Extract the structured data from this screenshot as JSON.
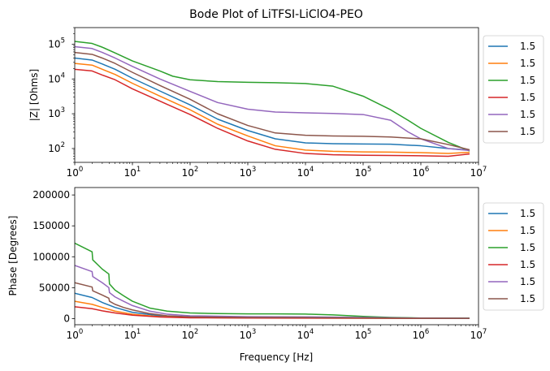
{
  "chart_data": [
    {
      "type": "line",
      "title": "Bode Plot of LiTFSI-LiClO4-PEO",
      "xlabel": "",
      "ylabel": "|Z| [Ohms]",
      "xscale": "log",
      "yscale": "log",
      "xlim": [
        1,
        10000000
      ],
      "ylim": [
        40,
        300000
      ],
      "xticks": [
        {
          "value": 1,
          "base": "10",
          "exp": "0"
        },
        {
          "value": 10,
          "base": "10",
          "exp": "1"
        },
        {
          "value": 100,
          "base": "10",
          "exp": "2"
        },
        {
          "value": 1000,
          "base": "10",
          "exp": "3"
        },
        {
          "value": 10000,
          "base": "10",
          "exp": "4"
        },
        {
          "value": 100000,
          "base": "10",
          "exp": "5"
        },
        {
          "value": 1000000,
          "base": "10",
          "exp": "6"
        },
        {
          "value": 10000000,
          "base": "10",
          "exp": "7"
        }
      ],
      "yticks": [
        {
          "value": 100,
          "base": "10",
          "exp": "2"
        },
        {
          "value": 1000,
          "base": "10",
          "exp": "3"
        },
        {
          "value": 10000,
          "base": "10",
          "exp": "4"
        },
        {
          "value": 100000,
          "base": "10",
          "exp": "5"
        }
      ],
      "grid": false,
      "legend_position": "outside-right",
      "series": [
        {
          "name": "1.5",
          "color": "#1f77b4",
          "points": [
            [
              1,
              40000
            ],
            [
              2,
              35000
            ],
            [
              3,
              27000
            ],
            [
              5,
              19000
            ],
            [
              10,
              10500
            ],
            [
              30,
              4500
            ],
            [
              100,
              1800
            ],
            [
              300,
              700
            ],
            [
              1000,
              330
            ],
            [
              3000,
              190
            ],
            [
              10000,
              145
            ],
            [
              30000,
              138
            ],
            [
              100000,
              135
            ],
            [
              300000,
              133
            ],
            [
              1000000,
              120
            ],
            [
              3000000,
              100
            ],
            [
              7000000,
              90
            ]
          ]
        },
        {
          "name": "1.5",
          "color": "#ff7f0e",
          "points": [
            [
              1,
              28000
            ],
            [
              2,
              25000
            ],
            [
              3,
              19000
            ],
            [
              5,
              13500
            ],
            [
              10,
              7500
            ],
            [
              30,
              3200
            ],
            [
              100,
              1300
            ],
            [
              300,
              500
            ],
            [
              1000,
              230
            ],
            [
              3000,
              120
            ],
            [
              10000,
              90
            ],
            [
              30000,
              83
            ],
            [
              100000,
              80
            ],
            [
              300000,
              79
            ],
            [
              1000000,
              76
            ],
            [
              3000000,
              72
            ],
            [
              7000000,
              78
            ]
          ]
        },
        {
          "name": "1.5",
          "color": "#2ca02c",
          "points": [
            [
              1,
              120000
            ],
            [
              2,
              105000
            ],
            [
              3,
              82000
            ],
            [
              5,
              56000
            ],
            [
              10,
              33000
            ],
            [
              30,
              17000
            ],
            [
              50,
              12000
            ],
            [
              100,
              9500
            ],
            [
              300,
              8400
            ],
            [
              1000,
              8000
            ],
            [
              3000,
              7800
            ],
            [
              10000,
              7400
            ],
            [
              30000,
              6200
            ],
            [
              100000,
              3200
            ],
            [
              300000,
              1300
            ],
            [
              600000,
              650
            ],
            [
              1000000,
              380
            ],
            [
              3000000,
              150
            ],
            [
              7000000,
              85
            ]
          ]
        },
        {
          "name": "1.5",
          "color": "#d62728",
          "points": [
            [
              1,
              19000
            ],
            [
              2,
              17000
            ],
            [
              3,
              13000
            ],
            [
              5,
              9500
            ],
            [
              10,
              5200
            ],
            [
              30,
              2300
            ],
            [
              100,
              950
            ],
            [
              300,
              380
            ],
            [
              1000,
              165
            ],
            [
              3000,
              95
            ],
            [
              10000,
              72
            ],
            [
              30000,
              66
            ],
            [
              100000,
              64
            ],
            [
              300000,
              63
            ],
            [
              1000000,
              62
            ],
            [
              3000000,
              60
            ],
            [
              7000000,
              70
            ]
          ]
        },
        {
          "name": "1.5",
          "color": "#9467bd",
          "points": [
            [
              1,
              85000
            ],
            [
              2,
              75000
            ],
            [
              3,
              58000
            ],
            [
              5,
              40000
            ],
            [
              10,
              23000
            ],
            [
              30,
              10000
            ],
            [
              100,
              4400
            ],
            [
              300,
              2100
            ],
            [
              1000,
              1350
            ],
            [
              3000,
              1120
            ],
            [
              10000,
              1060
            ],
            [
              30000,
              1020
            ],
            [
              100000,
              950
            ],
            [
              300000,
              650
            ],
            [
              600000,
              300
            ],
            [
              1000000,
              190
            ],
            [
              3000000,
              100
            ],
            [
              7000000,
              88
            ]
          ]
        },
        {
          "name": "1.5",
          "color": "#8c564b",
          "points": [
            [
              1,
              58000
            ],
            [
              2,
              51000
            ],
            [
              3,
              40000
            ],
            [
              5,
              28000
            ],
            [
              10,
              15500
            ],
            [
              30,
              6500
            ],
            [
              100,
              2600
            ],
            [
              300,
              1000
            ],
            [
              1000,
              460
            ],
            [
              3000,
              280
            ],
            [
              10000,
              240
            ],
            [
              30000,
              230
            ],
            [
              100000,
              225
            ],
            [
              300000,
              215
            ],
            [
              1000000,
              190
            ],
            [
              3000000,
              130
            ],
            [
              7000000,
              92
            ]
          ]
        }
      ]
    },
    {
      "type": "line",
      "title": "",
      "xlabel": "Frequency [Hz]",
      "ylabel": "Phase [Degrees]",
      "xscale": "log",
      "yscale": "linear",
      "xlim": [
        1,
        10000000
      ],
      "ylim": [
        -10000,
        212000
      ],
      "xticks": [
        {
          "value": 1,
          "base": "10",
          "exp": "0"
        },
        {
          "value": 10,
          "base": "10",
          "exp": "1"
        },
        {
          "value": 100,
          "base": "10",
          "exp": "2"
        },
        {
          "value": 1000,
          "base": "10",
          "exp": "3"
        },
        {
          "value": 10000,
          "base": "10",
          "exp": "4"
        },
        {
          "value": 100000,
          "base": "10",
          "exp": "5"
        },
        {
          "value": 1000000,
          "base": "10",
          "exp": "6"
        },
        {
          "value": 10000000,
          "base": "10",
          "exp": "7"
        }
      ],
      "yticks": [
        {
          "value": 0,
          "label": "0"
        },
        {
          "value": 50000,
          "label": "50000"
        },
        {
          "value": 100000,
          "label": "100000"
        },
        {
          "value": 150000,
          "label": "150000"
        },
        {
          "value": 200000,
          "label": "200000"
        }
      ],
      "grid": false,
      "legend_position": "outside-right",
      "series": [
        {
          "name": "1.5",
          "color": "#1f77b4",
          "points": [
            [
              1,
              41000
            ],
            [
              2,
              34000
            ],
            [
              3,
              26000
            ],
            [
              5,
              18000
            ],
            [
              10,
              10000
            ],
            [
              30,
              4500
            ],
            [
              100,
              2300
            ],
            [
              1000,
              1500
            ],
            [
              10000,
              1300
            ],
            [
              100000,
              800
            ],
            [
              1000000,
              400
            ],
            [
              7000000,
              300
            ]
          ]
        },
        {
          "name": "1.5",
          "color": "#ff7f0e",
          "points": [
            [
              1,
              28000
            ],
            [
              2,
              23000
            ],
            [
              3,
              18000
            ],
            [
              5,
              12000
            ],
            [
              10,
              7000
            ],
            [
              30,
              3000
            ],
            [
              100,
              1600
            ],
            [
              1000,
              1000
            ],
            [
              10000,
              900
            ],
            [
              100000,
              600
            ],
            [
              1000000,
              300
            ],
            [
              7000000,
              200
            ]
          ]
        },
        {
          "name": "1.5",
          "color": "#2ca02c",
          "points": [
            [
              1,
              122000
            ],
            [
              2,
              108000
            ],
            [
              2.05,
              95000
            ],
            [
              3,
              80000
            ],
            [
              3.9,
              72000
            ],
            [
              4,
              56000
            ],
            [
              5,
              46000
            ],
            [
              7,
              37000
            ],
            [
              10,
              28000
            ],
            [
              20,
              17000
            ],
            [
              40,
              12000
            ],
            [
              100,
              9000
            ],
            [
              300,
              8000
            ],
            [
              1000,
              7600
            ],
            [
              3000,
              7500
            ],
            [
              10000,
              7200
            ],
            [
              30000,
              6000
            ],
            [
              100000,
              3500
            ],
            [
              300000,
              1800
            ],
            [
              1000000,
              900
            ],
            [
              7000000,
              600
            ]
          ]
        },
        {
          "name": "1.5",
          "color": "#d62728",
          "points": [
            [
              1,
              19000
            ],
            [
              2,
              16000
            ],
            [
              3,
              12500
            ],
            [
              5,
              9000
            ],
            [
              10,
              5500
            ],
            [
              30,
              2500
            ],
            [
              100,
              1200
            ],
            [
              1000,
              800
            ],
            [
              10000,
              700
            ],
            [
              100000,
              500
            ],
            [
              1000000,
              300
            ],
            [
              7000000,
              200
            ]
          ]
        },
        {
          "name": "1.5",
          "color": "#9467bd",
          "points": [
            [
              1,
              86000
            ],
            [
              2,
              76000
            ],
            [
              2.05,
              68000
            ],
            [
              3,
              58000
            ],
            [
              3.9,
              50000
            ],
            [
              4,
              42000
            ],
            [
              5,
              35000
            ],
            [
              7,
              28000
            ],
            [
              10,
              21000
            ],
            [
              20,
              12000
            ],
            [
              40,
              7000
            ],
            [
              100,
              4500
            ],
            [
              1000,
              3000
            ],
            [
              10000,
              2700
            ],
            [
              100000,
              1800
            ],
            [
              1000000,
              700
            ],
            [
              7000000,
              500
            ]
          ]
        },
        {
          "name": "1.5",
          "color": "#8c564b",
          "points": [
            [
              1,
              58000
            ],
            [
              2,
              51000
            ],
            [
              2.05,
              45000
            ],
            [
              3,
              38000
            ],
            [
              3.9,
              33000
            ],
            [
              4,
              28000
            ],
            [
              5,
              23000
            ],
            [
              7,
              18000
            ],
            [
              10,
              14000
            ],
            [
              20,
              8000
            ],
            [
              40,
              4500
            ],
            [
              100,
              2800
            ],
            [
              1000,
              1800
            ],
            [
              10000,
              1600
            ],
            [
              100000,
              1000
            ],
            [
              1000000,
              500
            ],
            [
              7000000,
              300
            ]
          ]
        }
      ]
    }
  ]
}
